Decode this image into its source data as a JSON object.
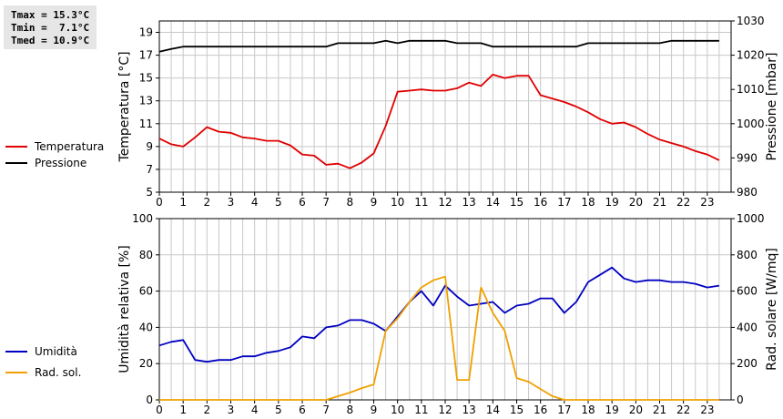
{
  "stats": {
    "tmax": "Tmax = 15.3°C",
    "tmin": "Tmin =  7.1°C",
    "tmed": "Tmed = 10.9°C"
  },
  "colors": {
    "temperature": "#e00000",
    "pressure": "#000000",
    "humidity": "#0000c0",
    "radiation": "#f0a000",
    "grid": "#c8c8c8"
  },
  "chart_data": [
    {
      "type": "line",
      "x": [
        0,
        0.5,
        1,
        1.5,
        2,
        2.5,
        3,
        3.5,
        4,
        4.5,
        5,
        5.5,
        6,
        6.5,
        7,
        7.5,
        8,
        8.5,
        9,
        9.5,
        10,
        10.5,
        11,
        11.5,
        12,
        12.5,
        13,
        13.5,
        14,
        14.5,
        15,
        15.5,
        16,
        16.5,
        17,
        17.5,
        18,
        18.5,
        19,
        19.5,
        20,
        20.5,
        21,
        21.5,
        22,
        22.5,
        23,
        23.5
      ],
      "xticks": [
        "0",
        "1",
        "2",
        "3",
        "4",
        "5",
        "6",
        "7",
        "8",
        "9",
        "10",
        "11",
        "12",
        "13",
        "14",
        "15",
        "16",
        "17",
        "18",
        "19",
        "20",
        "21",
        "22",
        "23"
      ],
      "xlim": [
        0,
        24
      ],
      "ylabel": "Temperatura [°C]",
      "ylim": [
        5,
        20
      ],
      "yticks": [
        "5",
        "7",
        "9",
        "11",
        "13",
        "15",
        "17",
        "19"
      ],
      "y2label": "Pressione [mbar]",
      "y2lim": [
        980,
        1030
      ],
      "y2ticks": [
        "980",
        "990",
        "1000",
        "1010",
        "1020",
        "1030"
      ],
      "grid": true,
      "legend_position": "left",
      "series": [
        {
          "name": "Temperatura",
          "axis": "left",
          "values": [
            9.7,
            9.2,
            9.0,
            9.8,
            10.7,
            10.3,
            10.2,
            9.8,
            9.7,
            9.5,
            9.5,
            9.1,
            8.3,
            8.2,
            7.4,
            7.5,
            7.1,
            7.6,
            8.4,
            10.8,
            13.8,
            13.9,
            14.0,
            13.9,
            13.9,
            14.1,
            14.6,
            14.3,
            15.3,
            15.0,
            15.2,
            15.2,
            13.5,
            13.2,
            12.9,
            12.5,
            12.0,
            11.4,
            11.0,
            11.1,
            10.7,
            10.1,
            9.6,
            9.3,
            9.0,
            8.6,
            8.3,
            7.8
          ]
        },
        {
          "name": "Pressione",
          "axis": "right",
          "values": [
            1021,
            1021.8,
            1022.5,
            1022.5,
            1022.5,
            1022.5,
            1022.5,
            1022.5,
            1022.5,
            1022.5,
            1022.5,
            1022.5,
            1022.5,
            1022.5,
            1022.5,
            1023.5,
            1023.5,
            1023.5,
            1023.5,
            1024.2,
            1023.5,
            1024.2,
            1024.2,
            1024.2,
            1024.2,
            1023.5,
            1023.5,
            1023.5,
            1022.5,
            1022.5,
            1022.5,
            1022.5,
            1022.5,
            1022.5,
            1022.5,
            1022.5,
            1023.5,
            1023.5,
            1023.5,
            1023.5,
            1023.5,
            1023.5,
            1023.5,
            1024.2,
            1024.2,
            1024.2,
            1024.2,
            1024.2
          ]
        }
      ]
    },
    {
      "type": "line",
      "x": [
        0,
        0.5,
        1,
        1.5,
        2,
        2.5,
        3,
        3.5,
        4,
        4.5,
        5,
        5.5,
        6,
        6.5,
        7,
        7.5,
        8,
        8.5,
        9,
        9.5,
        10,
        10.5,
        11,
        11.5,
        12,
        12.5,
        13,
        13.5,
        14,
        14.5,
        15,
        15.5,
        16,
        16.5,
        17,
        17.5,
        18,
        18.5,
        19,
        19.5,
        20,
        20.5,
        21,
        21.5,
        22,
        22.5,
        23,
        23.5
      ],
      "xticks": [
        "0",
        "1",
        "2",
        "3",
        "4",
        "5",
        "6",
        "7",
        "8",
        "9",
        "10",
        "11",
        "12",
        "13",
        "14",
        "15",
        "16",
        "17",
        "18",
        "19",
        "20",
        "21",
        "22",
        "23"
      ],
      "xlim": [
        0,
        24
      ],
      "ylabel": "Umidità relativa [%]",
      "ylim": [
        0,
        100
      ],
      "yticks": [
        "0",
        "20",
        "40",
        "60",
        "80",
        "100"
      ],
      "y2label": "Rad. solare [W/mq]",
      "y2lim": [
        0,
        1000
      ],
      "y2ticks": [
        "0",
        "200",
        "400",
        "600",
        "800",
        "1000"
      ],
      "grid": true,
      "legend_position": "left",
      "series": [
        {
          "name": "Umidità",
          "axis": "left",
          "values": [
            30,
            32,
            33,
            22,
            21,
            22,
            22,
            24,
            24,
            26,
            27,
            29,
            35,
            34,
            40,
            41,
            44,
            44,
            42,
            38,
            46,
            54,
            60,
            52,
            63,
            57,
            52,
            53,
            54,
            48,
            52,
            53,
            56,
            56,
            48,
            54,
            65,
            69,
            73,
            67,
            65,
            66,
            66,
            65,
            65,
            64,
            62,
            63
          ]
        },
        {
          "name": "Rad. sol.",
          "axis": "right",
          "values": [
            0,
            0,
            0,
            0,
            0,
            0,
            0,
            0,
            0,
            0,
            0,
            0,
            0,
            0,
            0,
            20,
            40,
            65,
            85,
            380,
            450,
            540,
            620,
            660,
            680,
            110,
            110,
            620,
            480,
            380,
            120,
            100,
            60,
            20,
            0,
            0,
            0,
            0,
            0,
            0,
            0,
            0,
            0,
            0,
            0,
            0,
            0,
            0
          ]
        }
      ]
    }
  ]
}
